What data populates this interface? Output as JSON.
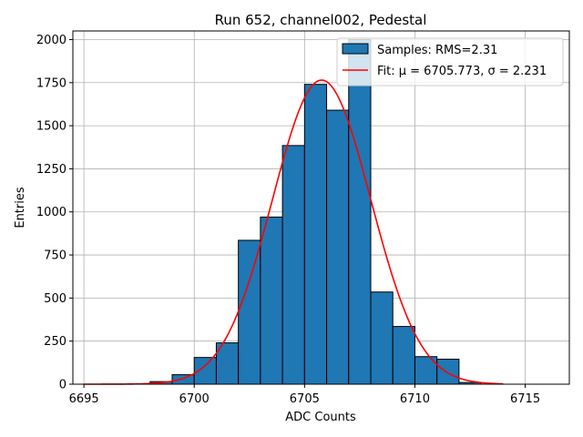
{
  "chart_data": {
    "type": "bar",
    "title": "Run 652, channel002, Pedestal",
    "xlabel": "ADC Counts",
    "ylabel": "Entries",
    "xlim": [
      6694.5,
      6717
    ],
    "ylim": [
      0,
      2050
    ],
    "grid": true,
    "legend_position": "top-right",
    "xticks": [
      6695,
      6700,
      6705,
      6710,
      6715
    ],
    "yticks": [
      0,
      250,
      500,
      750,
      1000,
      1250,
      1500,
      1750,
      2000
    ],
    "bar_color": "#1f77b4",
    "bar_edge_color": "#000000",
    "fit_color": "#ff0000",
    "histogram": {
      "name": "Samples: RMS=2.31",
      "bin_edges": [
        6695,
        6696,
        6697,
        6698,
        6699,
        6700,
        6701,
        6702,
        6703,
        6704,
        6705,
        6706,
        6707,
        6708,
        6709,
        6710,
        6711,
        6712,
        6713,
        6714,
        6715,
        6716
      ],
      "counts": [
        0,
        0,
        0,
        15,
        55,
        155,
        240,
        835,
        970,
        1385,
        1740,
        1590,
        2000,
        535,
        335,
        160,
        145,
        10,
        0,
        0,
        0
      ]
    },
    "fit": {
      "name": "Fit: μ = 6705.773, σ = 2.231",
      "mu": 6705.773,
      "sigma": 2.231,
      "amplitude": 1765,
      "x_range": [
        6695,
        6714
      ]
    }
  }
}
